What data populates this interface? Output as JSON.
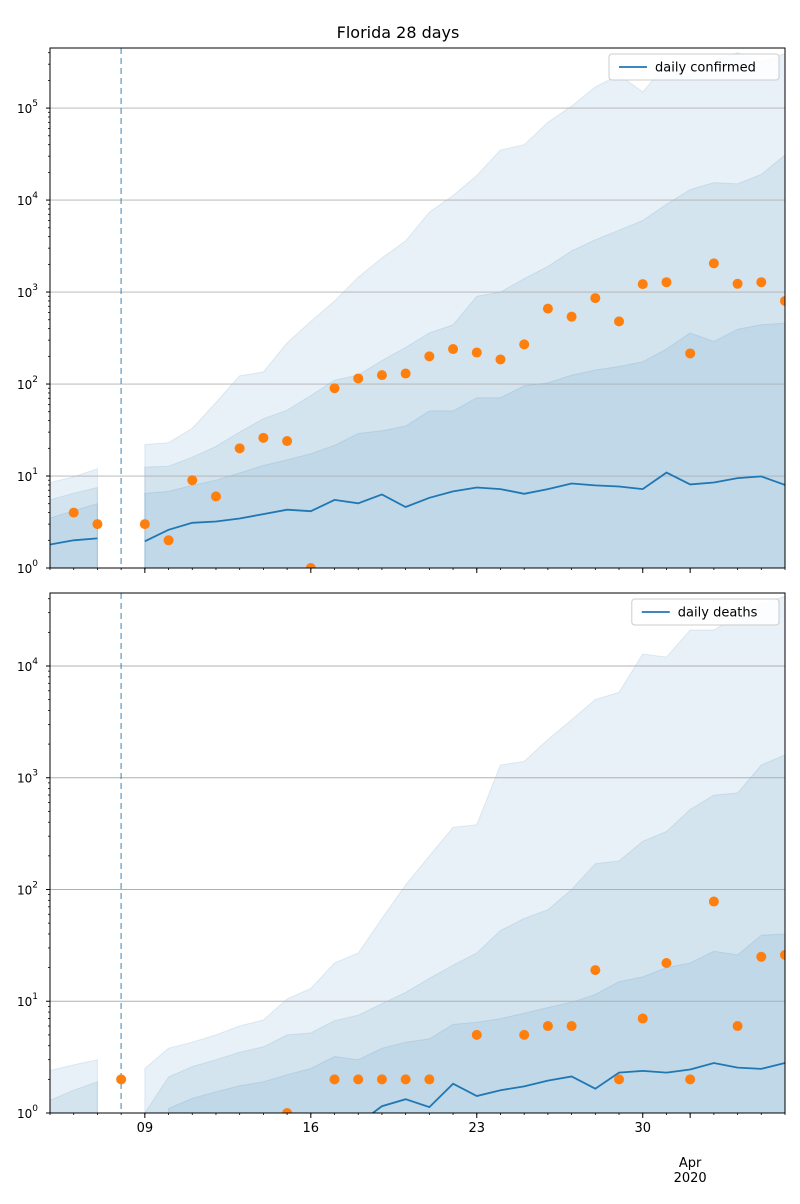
{
  "figure_title": "Florida 28 days",
  "colors": {
    "line": "#1f77b4",
    "points": "#ff7f0e",
    "band": "#1f77b4",
    "grid": "#b0b0b0"
  },
  "shared_x": {
    "x_range": [
      "2020-03-05",
      "2020-04-05"
    ],
    "major_ticks": [
      {
        "date": "2020-03-09",
        "label": "09"
      },
      {
        "date": "2020-03-16",
        "label": "16"
      },
      {
        "date": "2020-03-23",
        "label": "23"
      },
      {
        "date": "2020-03-30",
        "label": "30"
      },
      {
        "date": "2020-04-01",
        "label": "Apr",
        "sublabel": "2020"
      }
    ],
    "minor_ticks_daily": true,
    "gap_date": "2020-03-08"
  },
  "chart_data": [
    {
      "type": "line",
      "scale": "log",
      "grid": "y",
      "legend_placement": "top-right",
      "ylim": [
        1,
        450000
      ],
      "y_ticks": [
        {
          "value": 1,
          "base": "10",
          "exp": "0"
        },
        {
          "value": 10,
          "base": "10",
          "exp": "1"
        },
        {
          "value": 100,
          "base": "10",
          "exp": "2"
        },
        {
          "value": 1000,
          "base": "10",
          "exp": "3"
        },
        {
          "value": 10000,
          "base": "10",
          "exp": "4"
        },
        {
          "value": 100000,
          "base": "10",
          "exp": "5"
        }
      ],
      "vline_date": "2020-03-08",
      "x": [
        "2020-03-05",
        "2020-03-06",
        "2020-03-07",
        "2020-03-08",
        "2020-03-09",
        "2020-03-10",
        "2020-03-11",
        "2020-03-12",
        "2020-03-13",
        "2020-03-14",
        "2020-03-15",
        "2020-03-16",
        "2020-03-17",
        "2020-03-18",
        "2020-03-19",
        "2020-03-20",
        "2020-03-21",
        "2020-03-22",
        "2020-03-23",
        "2020-03-24",
        "2020-03-25",
        "2020-03-26",
        "2020-03-27",
        "2020-03-28",
        "2020-03-29",
        "2020-03-30",
        "2020-03-31",
        "2020-04-01",
        "2020-04-02",
        "2020-04-03",
        "2020-04-04",
        "2020-04-05"
      ],
      "series": [
        {
          "name": "daily confirmed",
          "kind": "line",
          "values": [
            1.8,
            2.0,
            2.1,
            null,
            1.95,
            2.6,
            3.1,
            3.2,
            3.45,
            3.85,
            4.3,
            4.15,
            5.5,
            5.05,
            6.3,
            4.6,
            5.8,
            6.8,
            7.5,
            7.2,
            6.4,
            7.2,
            8.3,
            7.9,
            7.7,
            7.2,
            10.9,
            8.1,
            8.5,
            9.5,
            9.9,
            8.0
          ]
        },
        {
          "name": "",
          "kind": "points",
          "values": [
            null,
            4,
            3,
            null,
            3,
            2,
            9,
            6,
            20,
            26,
            24,
            1,
            90,
            115,
            125,
            130,
            200,
            240,
            220,
            185,
            270,
            660,
            540,
            860,
            480,
            1220,
            1280,
            215,
            2050,
            1230,
            1280,
            800
          ]
        }
      ],
      "bands": [
        {
          "lower": [
            1,
            1,
            1,
            null,
            1,
            1,
            1,
            1,
            1,
            1,
            1,
            1,
            1,
            1,
            1,
            1,
            1,
            1,
            1,
            1,
            1,
            1,
            1,
            1,
            1,
            1,
            1,
            1,
            1,
            1,
            1,
            1
          ],
          "upper": [
            8.5,
            9.8,
            12,
            null,
            22,
            23,
            33,
            63,
            123,
            135,
            280,
            480,
            800,
            1450,
            2350,
            3600,
            7400,
            11200,
            18500,
            35000,
            40000,
            70000,
            105000,
            170000,
            230000,
            150000,
            300000,
            230000,
            330000,
            400000,
            320000,
            390000
          ]
        },
        {
          "lower": [
            1,
            1,
            1,
            null,
            1,
            1,
            1,
            1,
            1,
            1,
            1,
            1,
            1,
            1,
            1,
            1,
            1,
            1,
            1,
            1,
            1,
            1,
            1,
            1,
            1,
            1,
            1,
            1,
            1,
            1,
            1,
            1
          ],
          "upper": [
            5.5,
            6.5,
            7.5,
            null,
            12.5,
            12.8,
            16,
            21,
            30,
            42,
            52,
            75,
            110,
            125,
            180,
            250,
            360,
            440,
            900,
            1000,
            1400,
            1900,
            2800,
            3700,
            4700,
            6000,
            9000,
            13000,
            15500,
            15000,
            19000,
            31000
          ]
        },
        {
          "lower": [
            1,
            1,
            1,
            null,
            1,
            1,
            1,
            1,
            1,
            1,
            1,
            1,
            1,
            1,
            1,
            1,
            1,
            1,
            1,
            1,
            1,
            1,
            1,
            1,
            1,
            1,
            1,
            1,
            1,
            1,
            1,
            1
          ],
          "upper": [
            3.5,
            4.2,
            5.0,
            null,
            6.5,
            6.8,
            7.9,
            9.0,
            10.8,
            13,
            15,
            17.5,
            21.5,
            29,
            31,
            35,
            51,
            51,
            71,
            71,
            96,
            103,
            125,
            142,
            155,
            175,
            240,
            360,
            290,
            395,
            440,
            460
          ]
        }
      ]
    },
    {
      "type": "line",
      "scale": "log",
      "grid": "y",
      "legend_placement": "top-right",
      "ylim": [
        1,
        45000
      ],
      "y_ticks": [
        {
          "value": 1,
          "base": "10",
          "exp": "0"
        },
        {
          "value": 10,
          "base": "10",
          "exp": "1"
        },
        {
          "value": 100,
          "base": "10",
          "exp": "2"
        },
        {
          "value": 1000,
          "base": "10",
          "exp": "3"
        },
        {
          "value": 10000,
          "base": "10",
          "exp": "4"
        }
      ],
      "vline_date": "2020-03-08",
      "x": [
        "2020-03-05",
        "2020-03-06",
        "2020-03-07",
        "2020-03-08",
        "2020-03-09",
        "2020-03-10",
        "2020-03-11",
        "2020-03-12",
        "2020-03-13",
        "2020-03-14",
        "2020-03-15",
        "2020-03-16",
        "2020-03-17",
        "2020-03-18",
        "2020-03-19",
        "2020-03-20",
        "2020-03-21",
        "2020-03-22",
        "2020-03-23",
        "2020-03-24",
        "2020-03-25",
        "2020-03-26",
        "2020-03-27",
        "2020-03-28",
        "2020-03-29",
        "2020-03-30",
        "2020-03-31",
        "2020-04-01",
        "2020-04-02",
        "2020-04-03",
        "2020-04-04",
        "2020-04-05"
      ],
      "series": [
        {
          "name": "daily deaths",
          "kind": "line",
          "values": [
            null,
            null,
            null,
            null,
            null,
            null,
            null,
            null,
            null,
            null,
            null,
            null,
            null,
            0.8,
            1.15,
            1.33,
            1.13,
            1.83,
            1.42,
            1.6,
            1.73,
            1.95,
            2.12,
            1.65,
            2.3,
            2.38,
            2.3,
            2.45,
            2.8,
            2.55,
            2.48,
            2.8
          ]
        },
        {
          "name": "",
          "kind": "points",
          "values": [
            null,
            null,
            null,
            2,
            null,
            null,
            null,
            null,
            null,
            null,
            1,
            null,
            2,
            2,
            2,
            2,
            2,
            null,
            5,
            null,
            5,
            6,
            6,
            19,
            2,
            7,
            22,
            2,
            78,
            6,
            25,
            26
          ]
        }
      ],
      "bands": [
        {
          "lower": [
            1,
            1,
            1,
            null,
            1,
            1,
            1,
            1,
            1,
            1,
            1,
            1,
            1,
            1,
            1,
            1,
            1,
            1,
            1,
            1,
            1,
            1,
            1,
            1,
            1,
            1,
            1,
            1,
            1,
            1,
            1,
            1
          ],
          "upper": [
            2.4,
            2.7,
            3.0,
            null,
            2.5,
            3.8,
            4.3,
            5.0,
            6.0,
            6.8,
            10.5,
            13,
            22,
            27,
            55,
            110,
            200,
            360,
            380,
            1300,
            1400,
            2200,
            3300,
            5000,
            5800,
            12800,
            12000,
            21000,
            21000,
            28000,
            36000,
            42000
          ]
        },
        {
          "lower": [
            1,
            1,
            1,
            null,
            1,
            1,
            1,
            1,
            1,
            1,
            1,
            1,
            1,
            1,
            1,
            1,
            1,
            1,
            1,
            1,
            1,
            1,
            1,
            1,
            1,
            1,
            1,
            1,
            1,
            1,
            1,
            1
          ],
          "upper": [
            1.3,
            1.6,
            1.9,
            null,
            1.0,
            2.1,
            2.6,
            3.0,
            3.5,
            3.9,
            5.0,
            5.2,
            6.7,
            7.5,
            9.5,
            12,
            16,
            21,
            27,
            43,
            55,
            66,
            100,
            170,
            180,
            270,
            330,
            520,
            700,
            730,
            1300,
            1600
          ]
        },
        {
          "lower": [
            1,
            1,
            1,
            null,
            1,
            1,
            1,
            1,
            1,
            1,
            1,
            1,
            1,
            1,
            1,
            1,
            1,
            1,
            1,
            1,
            1,
            1,
            1,
            1,
            1,
            1,
            1,
            1,
            1,
            1,
            1,
            1
          ],
          "upper": [
            null,
            null,
            null,
            null,
            null,
            1.1,
            1.35,
            1.55,
            1.75,
            1.9,
            2.2,
            2.5,
            3.2,
            3.0,
            3.8,
            4.3,
            4.6,
            6.2,
            6.5,
            7.0,
            7.8,
            8.8,
            9.8,
            11.5,
            15,
            16.5,
            20,
            22,
            28,
            26,
            39,
            40
          ]
        }
      ]
    }
  ]
}
